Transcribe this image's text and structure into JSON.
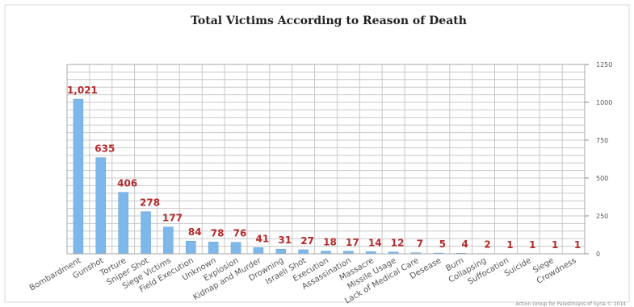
{
  "chart_data": {
    "type": "bar",
    "title": "Total Victims According to Reason of Death",
    "xlabel": "",
    "ylabel": "",
    "categories": [
      "Bombardment",
      "Gunshot",
      "Torture",
      "Sniper Shot",
      "Siege Victims",
      "Field Execution",
      "Unknown",
      "Explosion",
      "Kidnap and Murder",
      "Drowning",
      "Israeli Shot",
      "Execution",
      "Assassination",
      "Massacre",
      "Missile Usage",
      "Lack of Medical Care",
      "Desease",
      "Burn",
      "Collapsing",
      "Suffocation",
      "Suicide",
      "Siege",
      "Crowdness"
    ],
    "values": [
      1021,
      635,
      406,
      278,
      177,
      84,
      78,
      76,
      41,
      31,
      27,
      18,
      17,
      14,
      12,
      7,
      5,
      4,
      2,
      1,
      1,
      1,
      1
    ],
    "data_labels": [
      "1,021",
      "635",
      "406",
      "278",
      "177",
      "84",
      "78",
      "76",
      "41",
      "31",
      "27",
      "18",
      "17",
      "14",
      "12",
      "7",
      "5",
      "4",
      "2",
      "1",
      "1",
      "1",
      "1"
    ],
    "ylim": [
      0,
      1250
    ],
    "yticks": [
      0,
      250,
      500,
      750,
      1000,
      1250
    ],
    "grid": true,
    "y_axis_side": "right",
    "legend": "none",
    "colors": {
      "bar": "#7eb8ea",
      "bar_edge": "#5b9fd8",
      "label": "#b52b2b"
    }
  },
  "credit": "Action Group for Palestinians of Syria © 2014"
}
